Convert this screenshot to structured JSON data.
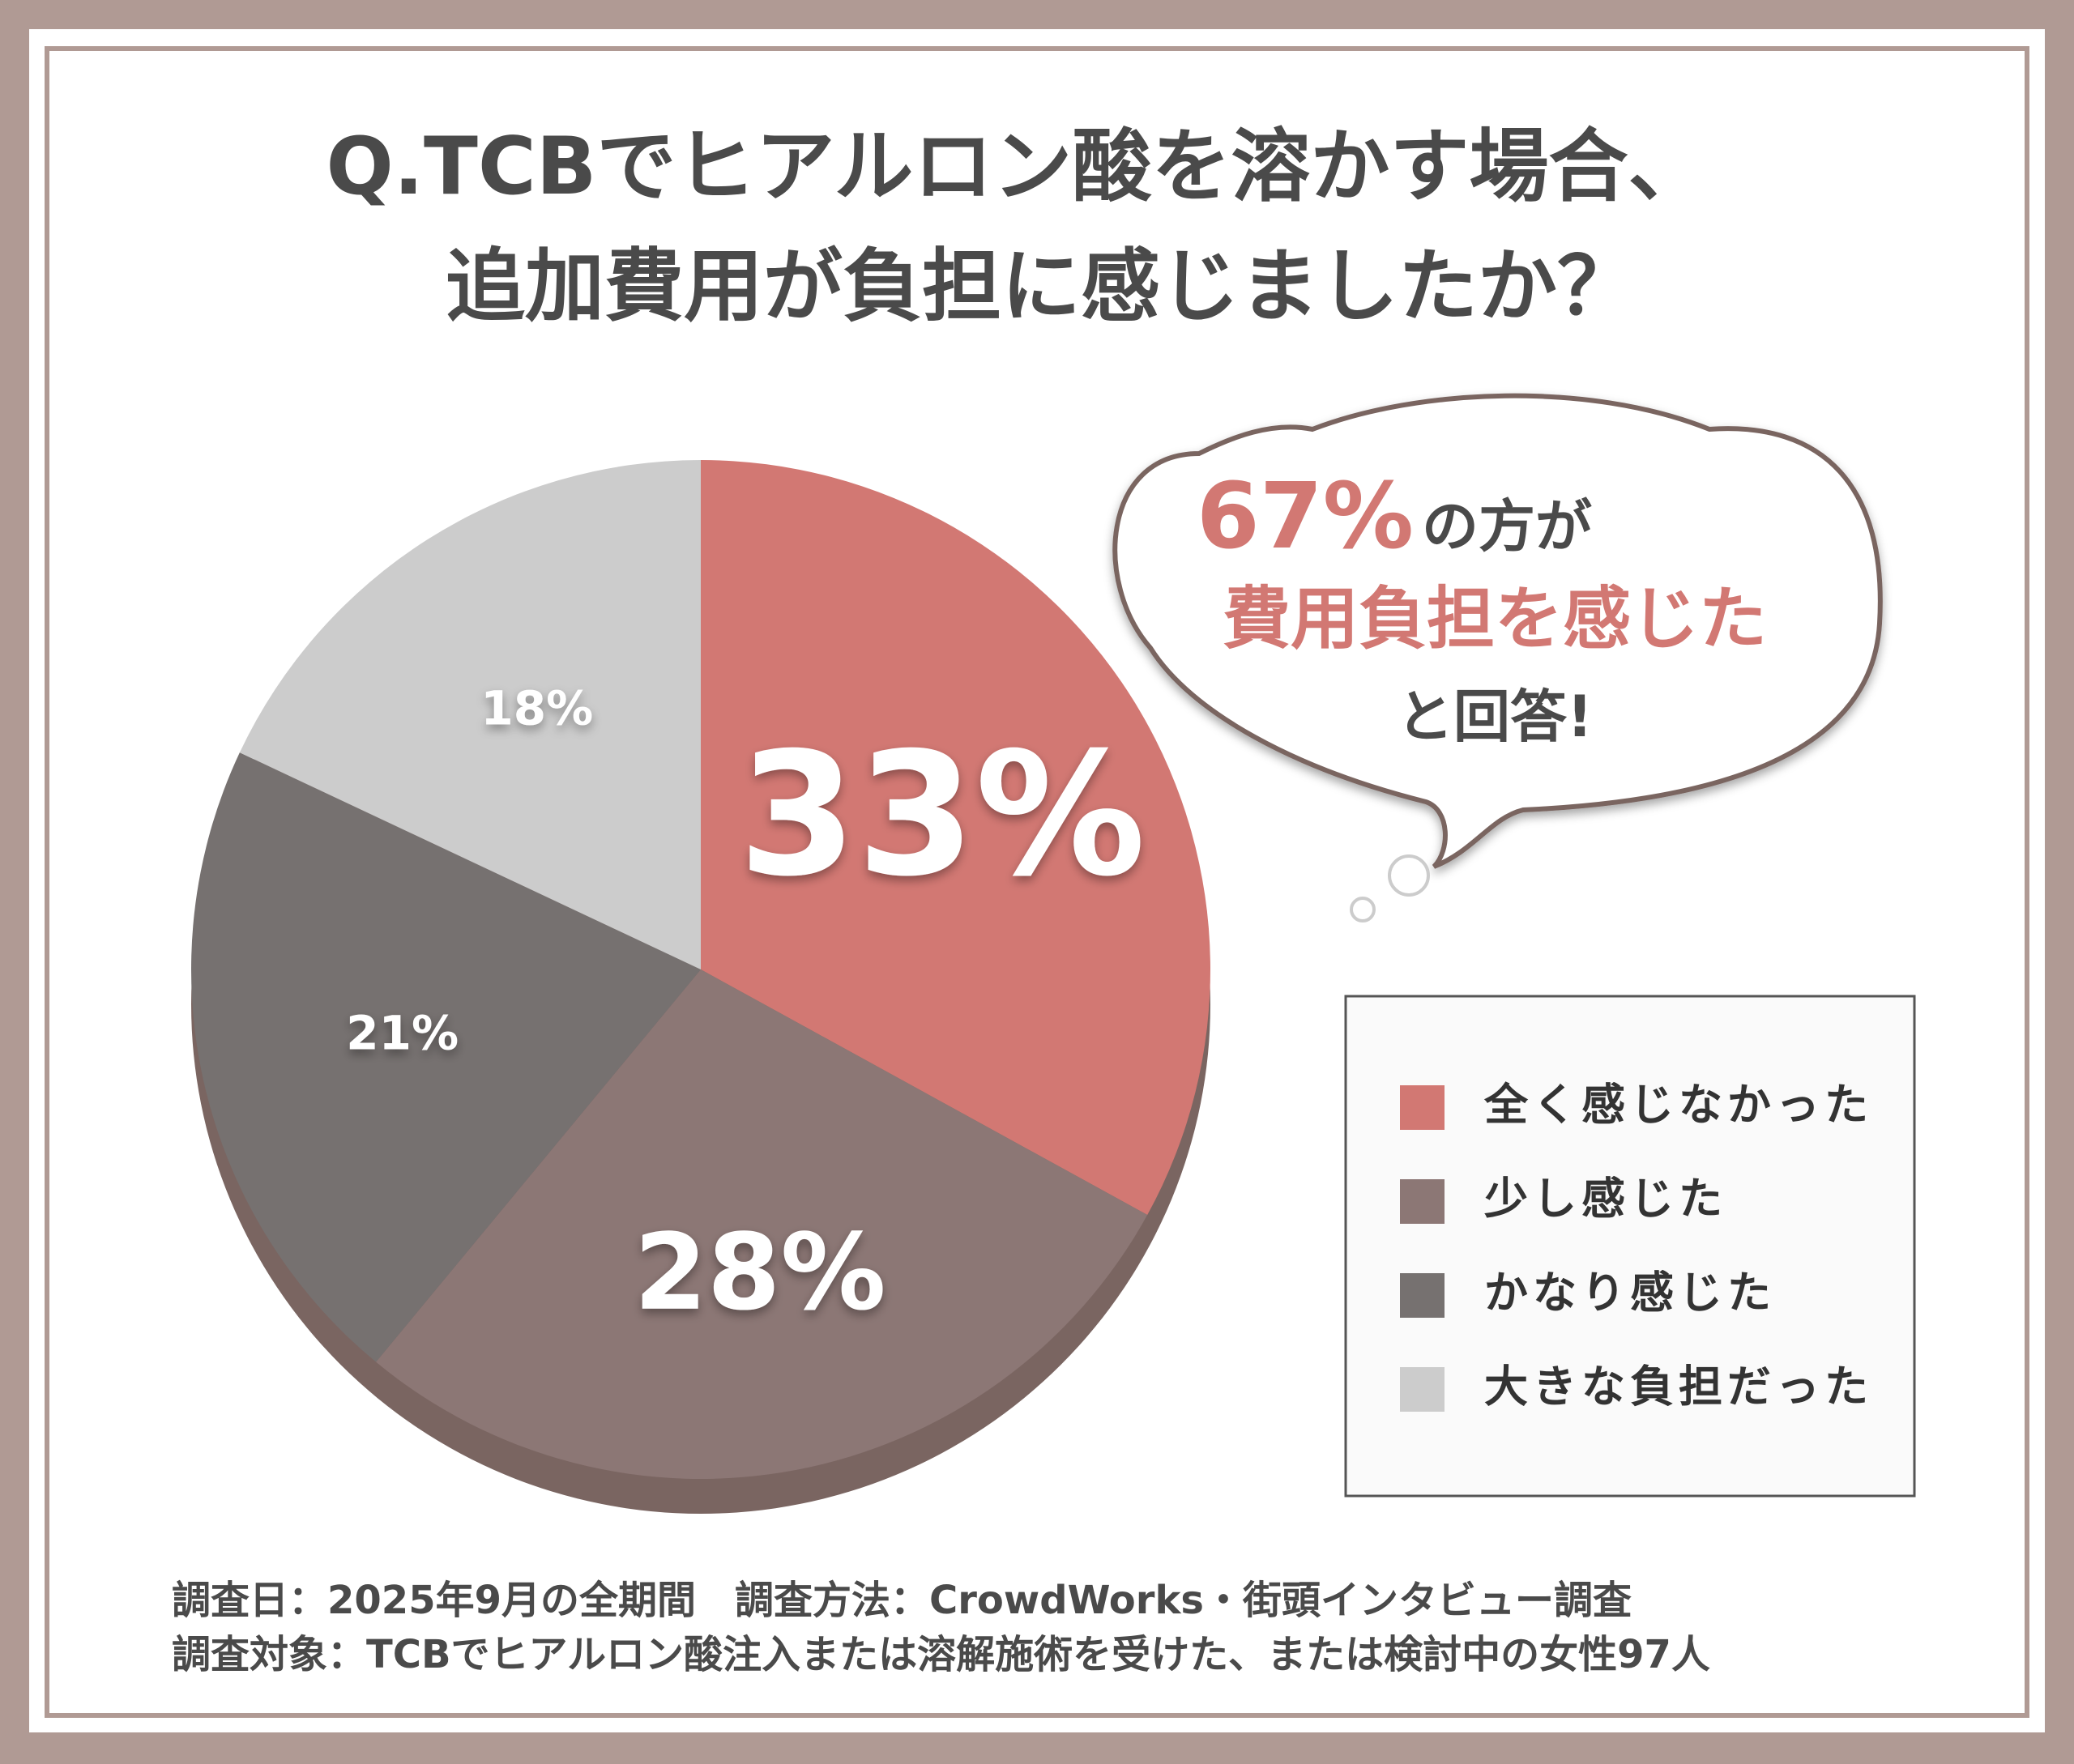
{
  "chart_data": {
    "type": "pie",
    "title": [
      "Q.TCBでヒアルロン酸を溶かす場合、",
      "追加費用が負担に感じましたか？"
    ],
    "categories": [
      "全く感じなかった",
      "少し感じた",
      "かなり感じた",
      "大きな負担だった"
    ],
    "values": [
      33,
      28,
      21,
      18
    ],
    "value_labels": [
      "33%",
      "28%",
      "21%",
      "18%"
    ],
    "colors": [
      "#d27873",
      "#8c7775",
      "#767170",
      "#cccccc"
    ],
    "callout": [
      "67%",
      "の方が",
      "費用負担を感じた",
      "と回答!"
    ],
    "footer": [
      "調査日：2025年9月の全期間　調査方法：CrowdWorks・街頭インタビュー調査",
      "調査対象：TCBでヒアルロン酸注入または溶解施術を受けた、または検討中の女性97人"
    ]
  }
}
